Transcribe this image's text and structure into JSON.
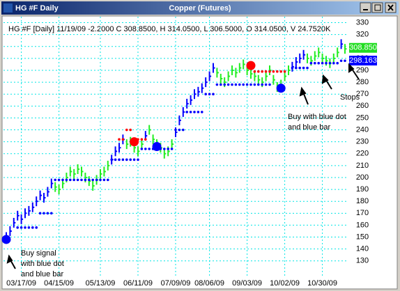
{
  "window_title": "HG #F Daily",
  "chart_data": {
    "type": "ohlc-signals",
    "title": "Copper (Futures)",
    "header": "HG #F [Daily] 11/19/09 -2.2000 C 308.8500, H 314.0500, L 306.5000, O 314.0500, V 24.7520K",
    "x": [
      null,
      null,
      null,
      null,
      "03/17/09",
      null,
      null,
      null,
      null,
      null,
      null,
      null,
      null,
      null,
      "04/15/09",
      null,
      null,
      null,
      null,
      null,
      null,
      null,
      null,
      null,
      null,
      "05/13/09",
      null,
      null,
      null,
      null,
      null,
      null,
      null,
      null,
      null,
      "06/11/09",
      null,
      null,
      null,
      null,
      null,
      null,
      null,
      null,
      null,
      "07/09/09",
      null,
      null,
      null,
      null,
      null,
      null,
      null,
      null,
      "08/06/09",
      null,
      null,
      null,
      null,
      null,
      null,
      null,
      null,
      null,
      "09/03/09",
      null,
      null,
      null,
      null,
      null,
      null,
      null,
      null,
      null,
      "10/02/09",
      null,
      null,
      null,
      null,
      null,
      null,
      null,
      null,
      null,
      "10/30/09",
      null,
      null,
      null,
      null,
      null,
      null
    ],
    "series": [
      {
        "color": "#0000ff",
        "values": [
          150,
          155,
          162,
          168,
          165,
          170,
          172,
          175,
          180,
          185,
          183,
          188,
          195,
          null,
          null,
          null,
          null,
          null,
          null,
          null,
          null,
          null,
          null,
          null,
          null,
          null,
          null,
          null,
          215,
          222,
          225,
          232,
          null,
          null,
          null,
          null,
          null,
          235,
          null,
          null,
          null,
          null,
          null,
          null,
          null,
          238,
          248,
          255,
          262,
          265,
          270,
          272,
          275,
          280,
          285,
          292,
          null,
          null,
          null,
          null,
          null,
          null,
          null,
          null,
          null,
          null,
          null,
          null,
          null,
          null,
          null,
          null,
          null,
          null,
          null,
          null,
          293,
          297,
          300,
          303,
          null,
          null,
          null,
          null,
          null,
          null,
          null,
          null,
          null,
          312,
          null
        ]
      },
      {
        "color": "#22ee22",
        "values": [
          null,
          null,
          null,
          null,
          null,
          null,
          null,
          null,
          null,
          null,
          null,
          null,
          null,
          192,
          190,
          195,
          200,
          205,
          203,
          207,
          205,
          200,
          197,
          193,
          198,
          203,
          205,
          210,
          null,
          null,
          null,
          null,
          228,
          230,
          225,
          222,
          228,
          null,
          240,
          232,
          228,
          225,
          220,
          222,
          228,
          null,
          null,
          null,
          null,
          null,
          null,
          null,
          null,
          null,
          null,
          null,
          288,
          283,
          280,
          285,
          290,
          288,
          292,
          295,
          290,
          287,
          285,
          282,
          280,
          285,
          290,
          282,
          276,
          278,
          285,
          290,
          null,
          null,
          null,
          null,
          300,
          298,
          302,
          305,
          300,
          298,
          296,
          300,
          305,
          null,
          308
        ]
      },
      {
        "color": "#0000ff",
        "values": [
          null,
          null,
          null,
          158,
          158,
          158,
          158,
          158,
          158,
          170,
          170,
          170,
          170,
          198,
          198,
          198,
          198,
          198,
          198,
          198,
          198,
          198,
          198,
          198,
          198,
          198,
          198,
          198,
          215,
          215,
          215,
          215,
          215,
          215,
          215,
          215,
          224,
          224,
          224,
          224,
          224,
          224,
          224,
          224,
          224,
          240,
          240,
          240,
          255,
          255,
          255,
          255,
          255,
          270,
          270,
          270,
          278,
          278,
          278,
          278,
          278,
          278,
          278,
          278,
          278,
          278,
          278,
          278,
          278,
          278,
          278,
          null,
          null,
          null,
          null,
          null,
          292,
          292,
          292,
          292,
          292,
          296,
          296,
          296,
          296,
          296,
          296,
          296,
          296,
          298,
          298
        ]
      },
      {
        "color": "#ff0000",
        "values": [
          null,
          null,
          null,
          null,
          null,
          null,
          null,
          null,
          null,
          null,
          null,
          null,
          null,
          null,
          null,
          null,
          null,
          null,
          null,
          null,
          null,
          null,
          null,
          null,
          null,
          null,
          null,
          null,
          null,
          null,
          232,
          232,
          240,
          240,
          232,
          232,
          232,
          232,
          null,
          null,
          null,
          null,
          null,
          null,
          null,
          null,
          null,
          null,
          null,
          null,
          null,
          null,
          null,
          null,
          null,
          null,
          null,
          null,
          null,
          null,
          null,
          null,
          null,
          null,
          null,
          null,
          289,
          289,
          289,
          289,
          289,
          289,
          289,
          289,
          289,
          null,
          null,
          null,
          null,
          null,
          null,
          null,
          null,
          null,
          null,
          null,
          null,
          null,
          null,
          null,
          null
        ]
      },
      {
        "color": "#0000ff",
        "values": [
          148,
          null,
          null,
          null,
          null,
          null,
          null,
          null,
          null,
          null,
          null,
          null,
          null,
          null,
          null,
          null,
          null,
          null,
          null,
          null,
          null,
          null,
          null,
          null,
          null,
          null,
          null,
          null,
          null,
          null,
          null,
          null,
          null,
          null,
          null,
          null,
          null,
          null,
          null,
          null,
          226,
          null,
          null,
          null,
          null,
          null,
          null,
          null,
          null,
          null,
          null,
          null,
          null,
          null,
          null,
          null,
          null,
          null,
          null,
          null,
          null,
          null,
          null,
          null,
          null,
          null,
          null,
          null,
          null,
          null,
          null,
          null,
          null,
          275,
          null,
          null,
          null,
          null,
          null,
          null,
          null,
          null,
          null,
          null,
          null,
          null,
          null,
          null,
          null,
          null,
          null
        ]
      },
      {
        "color": "#ff0000",
        "values": [
          null,
          null,
          null,
          null,
          null,
          null,
          null,
          null,
          null,
          null,
          null,
          null,
          null,
          null,
          null,
          null,
          null,
          null,
          null,
          null,
          null,
          null,
          null,
          null,
          null,
          null,
          null,
          null,
          null,
          null,
          null,
          null,
          null,
          null,
          230,
          null,
          null,
          null,
          null,
          null,
          null,
          null,
          null,
          null,
          null,
          null,
          null,
          null,
          null,
          null,
          null,
          null,
          null,
          null,
          null,
          null,
          null,
          null,
          null,
          null,
          null,
          null,
          null,
          null,
          null,
          294,
          null,
          null,
          null,
          null,
          null,
          null,
          null,
          null,
          null,
          null,
          null,
          null,
          null,
          null,
          null,
          null,
          null,
          null,
          null,
          null,
          null,
          null,
          null,
          null,
          null
        ]
      }
    ],
    "price_tags": [
      {
        "value": 308.85,
        "label": "308.850",
        "color": "#22dd22"
      },
      {
        "value": 298.163,
        "color": "#0000ff"
      }
    ],
    "ylim": [
      117,
      335
    ],
    "yticks": [
      130,
      140,
      150,
      160,
      170,
      180,
      190,
      200,
      210,
      220,
      230,
      240,
      250,
      260,
      270,
      280,
      290,
      300,
      310,
      320,
      330
    ],
    "grid": true,
    "annotations": [
      {
        "lines": [
          "Buy signal",
          "with blue dot",
          "and blue bar"
        ]
      },
      {
        "lines": [
          "Buy with blue dot",
          "and blue bar"
        ]
      },
      {
        "lines": [
          "Stops"
        ]
      }
    ]
  }
}
